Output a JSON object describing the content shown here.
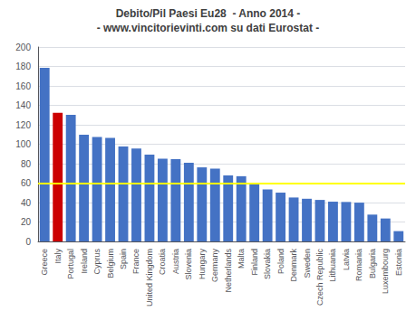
{
  "chart_data": {
    "type": "bar",
    "title": "Debito/Pil Paesi Eu28  - Anno 2014 -",
    "subtitle": "- www.vincitorievinti.com su dati Eurostat -",
    "categories": [
      "Greece",
      "Italy",
      "Portugal",
      "Ireland",
      "Cyprus",
      "Belgium",
      "Spain",
      "France",
      "United Kingdom",
      "Croatia",
      "Austria",
      "Slovenia",
      "Hungary",
      "Germany",
      "Netherlands",
      "Malta",
      "Finland",
      "Slovakia",
      "Poland",
      "Denmark",
      "Sweden",
      "Czech Republic",
      "Lithuania",
      "Latvia",
      "Romania",
      "Bulgaria",
      "Luxembourg",
      "Estonia"
    ],
    "values": [
      178.6,
      132.3,
      130.2,
      109.7,
      107.5,
      106.5,
      97.7,
      95.6,
      89.4,
      85.1,
      84.6,
      80.9,
      76.2,
      74.9,
      68.0,
      67.1,
      59.3,
      53.5,
      50.2,
      45.2,
      43.9,
      42.7,
      40.9,
      40.6,
      39.9,
      27.6,
      23.6,
      10.6
    ],
    "colors": [
      "#4472c4",
      "#cc0000",
      "#4472c4",
      "#4472c4",
      "#4472c4",
      "#4472c4",
      "#4472c4",
      "#4472c4",
      "#4472c4",
      "#4472c4",
      "#4472c4",
      "#4472c4",
      "#4472c4",
      "#4472c4",
      "#4472c4",
      "#4472c4",
      "#4472c4",
      "#4472c4",
      "#4472c4",
      "#4472c4",
      "#4472c4",
      "#4472c4",
      "#4472c4",
      "#4472c4",
      "#4472c4",
      "#4472c4",
      "#4472c4",
      "#4472c4"
    ],
    "reference_line": {
      "value": 60,
      "color": "#ffff00"
    },
    "ylim": [
      0,
      200
    ],
    "yticks": [
      0,
      20,
      40,
      60,
      80,
      100,
      120,
      140,
      160,
      180,
      200
    ],
    "grid": true
  }
}
